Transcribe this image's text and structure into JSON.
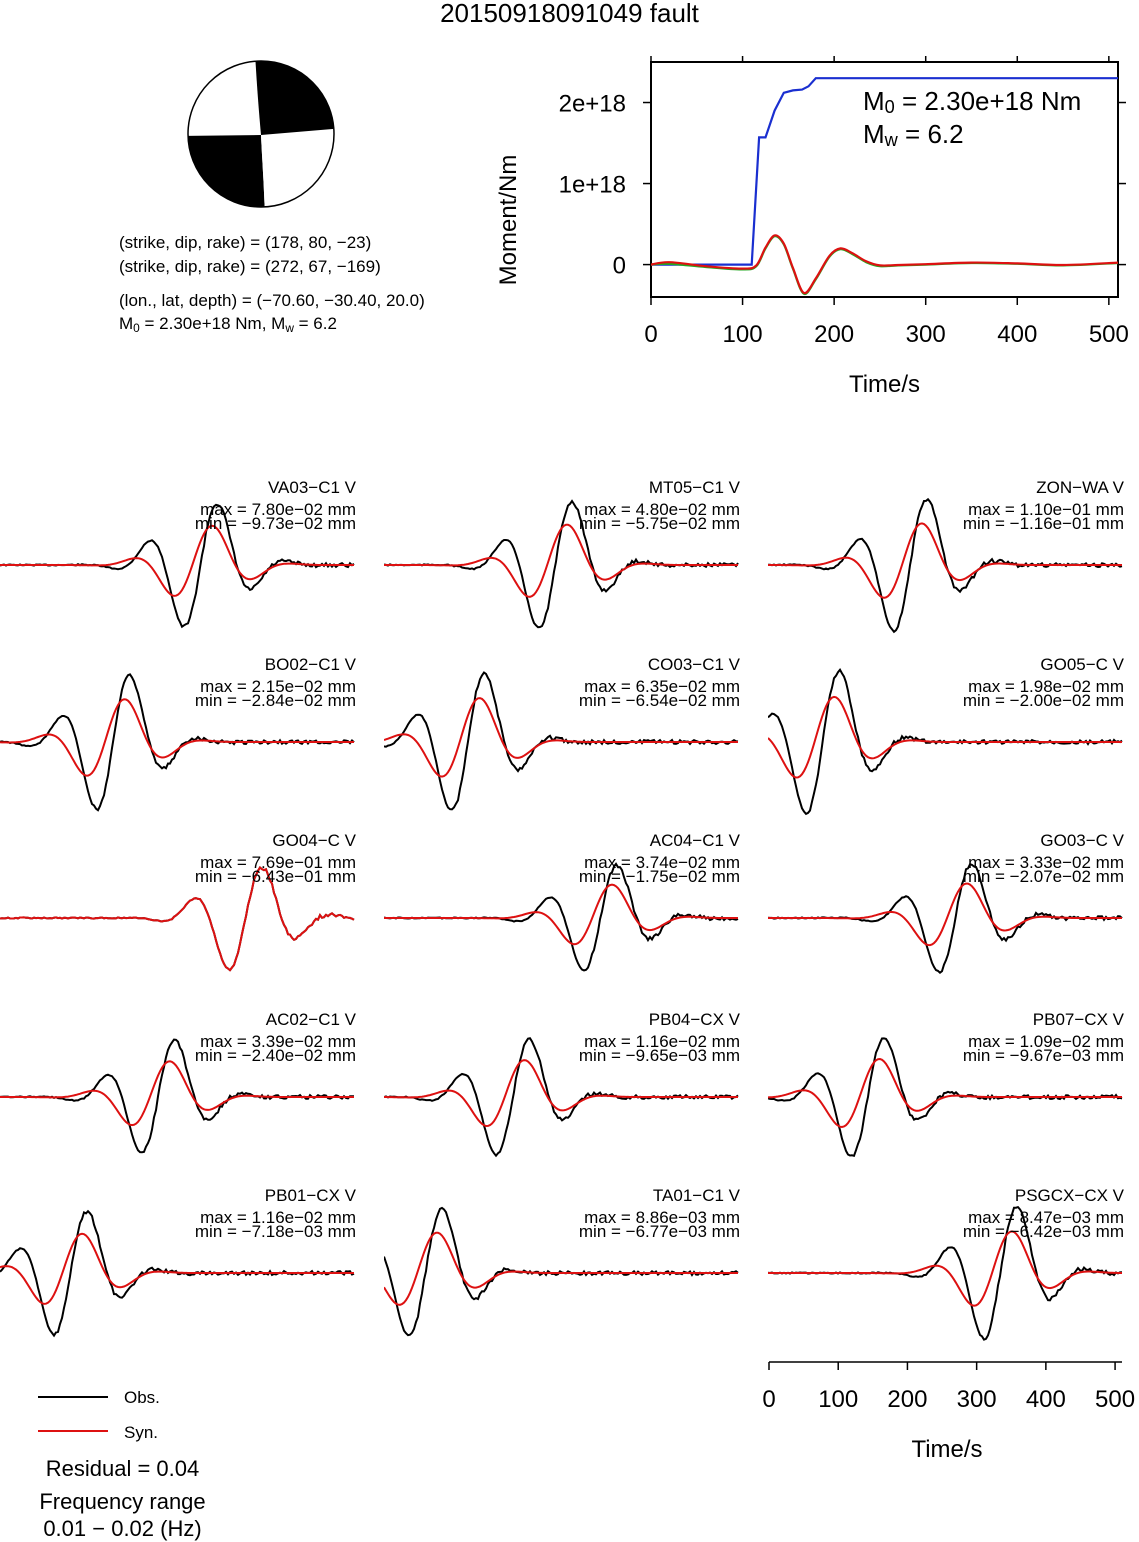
{
  "title": "20150918091049 fault",
  "mechanism": {
    "line1": "(strike, dip, rake) = (178, 80, −23)",
    "line2": "(strike, dip, rake) = (272, 67, −169)",
    "line3": "(lon., lat, depth) = (−70.60, −30.40, 20.0)",
    "m0_text": "M",
    "m0_sub": "0",
    "m0_rest": " = 2.30e+18 Nm, M",
    "mw_sub": "w",
    "mw_rest": " = 6.2"
  },
  "moment_panel": {
    "ylabel": "Moment/Nm",
    "xlabel": "Time/s",
    "ann_m0_sym": "M",
    "ann_m0_sub": "0",
    "ann_m0_val": " = 2.30e+18 Nm",
    "ann_mw_sym": "M",
    "ann_mw_sub": "w",
    "ann_mw_val": " = 6.2"
  },
  "stations": [
    {
      "name": "VA03−C1 V",
      "max": "max = 7.80e−02 mm",
      "min": "min = −9.73e−02 mm"
    },
    {
      "name": "MT05−C1 V",
      "max": "max = 4.80e−02 mm",
      "min": "min = −5.75e−02 mm"
    },
    {
      "name": "ZON−WA V",
      "max": "max = 1.10e−01 mm",
      "min": "min = −1.16e−01 mm"
    },
    {
      "name": "BO02−C1 V",
      "max": "max = 2.15e−02 mm",
      "min": "min = −2.84e−02 mm"
    },
    {
      "name": "CO03−C1 V",
      "max": "max = 6.35e−02 mm",
      "min": "min = −6.54e−02 mm"
    },
    {
      "name": "GO05−C V",
      "max": "max = 1.98e−02 mm",
      "min": "min = −2.00e−02 mm"
    },
    {
      "name": "GO04−C V",
      "max": "max = 7.69e−01 mm",
      "min": "min = −6.43e−01 mm"
    },
    {
      "name": "AC04−C1 V",
      "max": "max = 3.74e−02 mm",
      "min": "min = −1.75e−02 mm"
    },
    {
      "name": "GO03−C V",
      "max": "max = 3.33e−02 mm",
      "min": "min = −2.07e−02 mm"
    },
    {
      "name": "AC02−C1 V",
      "max": "max = 3.39e−02 mm",
      "min": "min = −2.40e−02 mm"
    },
    {
      "name": "PB04−CX V",
      "max": "max = 1.16e−02 mm",
      "min": "min = −9.65e−03 mm"
    },
    {
      "name": "PB07−CX V",
      "max": "max = 1.09e−02 mm",
      "min": "min = −9.67e−03 mm"
    },
    {
      "name": "PB01−CX V",
      "max": "max = 1.16e−02 mm",
      "min": "min = −7.18e−03 mm"
    },
    {
      "name": "TA01−C1 V",
      "max": "max = 8.86e−03 mm",
      "min": "min = −6.77e−03 mm"
    },
    {
      "name": "PSGCX−CX V",
      "max": "max = 8.47e−03 mm",
      "min": "min = −6.42e−03 mm"
    }
  ],
  "legend": {
    "obs": "Obs.",
    "syn": "Syn."
  },
  "residual": "Residual = 0.04",
  "freq_label": "Frequency range",
  "freq_value": "0.01 − 0.02 (Hz)",
  "waveform_axis": {
    "xlabel": "Time/s"
  },
  "colors": {
    "obs": "#000000",
    "syn": "#dd1111",
    "moment": "#1a2fd0",
    "moment_green": "#22aa22",
    "moment_red": "#dd1111"
  },
  "chart_data": [
    {
      "type": "line",
      "title": "",
      "xlabel": "Time/s",
      "ylabel": "Moment/Nm",
      "xlim": [
        0,
        510
      ],
      "ylim": [
        -4e+17,
        2.5e+18
      ],
      "xticks": [
        0,
        100,
        200,
        300,
        400,
        500
      ],
      "yticks": [
        0,
        1e+18,
        2e+18
      ],
      "ytick_labels": [
        "0",
        "1e+18",
        "2e+18"
      ],
      "series": [
        {
          "color": "#1a2fd0",
          "x": [
            0,
            110,
            118,
            125,
            135,
            145,
            155,
            165,
            172,
            180,
            510
          ],
          "y": [
            0,
            0,
            1.57e+18,
            1.57e+18,
            1.9e+18,
            2.12e+18,
            2.15e+18,
            2.16e+18,
            2.2e+18,
            2.3e+18,
            2.3e+18
          ]
        },
        {
          "color": "#22aa22",
          "x": [
            0,
            20,
            60,
            100,
            115,
            125,
            135,
            145,
            155,
            167,
            180,
            195,
            207,
            220,
            235,
            250,
            270,
            300,
            350,
            400,
            450,
            510
          ],
          "y": [
            0,
            1e+16,
            -3e+16,
            -6e+16,
            -2e+16,
            2e+17,
            3.5e+17,
            2.5e+17,
            -5e+16,
            -3.6e+17,
            -1.8e+17,
            1e+17,
            1.9e+17,
            1.3e+17,
            3e+16,
            -2e+16,
            -1e+16,
            0.0,
            2e+16,
            1e+16,
            -1e+16,
            2e+16
          ]
        },
        {
          "color": "#dd1111",
          "x": [
            0,
            20,
            60,
            100,
            115,
            125,
            135,
            145,
            155,
            167,
            180,
            195,
            207,
            220,
            235,
            250,
            270,
            300,
            350,
            400,
            450,
            510
          ],
          "y": [
            0,
            3e+16,
            -2e+16,
            -5e+16,
            -1e+16,
            2.1e+17,
            3.6e+17,
            2.6e+17,
            -4e+16,
            -3.5e+17,
            -1.7e+17,
            1.1e+17,
            2e+17,
            1.4e+17,
            4e+16,
            -1e+16,
            -5000000000000000.0,
            5000000000000000.0,
            2.5e+16,
            1.5e+16,
            -5000000000000000.0,
            2.5e+16
          ]
        }
      ]
    },
    {
      "type": "line",
      "title": "",
      "xlabel": "Time/s",
      "xlim": [
        0,
        510
      ],
      "xticks": [
        0,
        100,
        200,
        300,
        400,
        500
      ]
    }
  ]
}
